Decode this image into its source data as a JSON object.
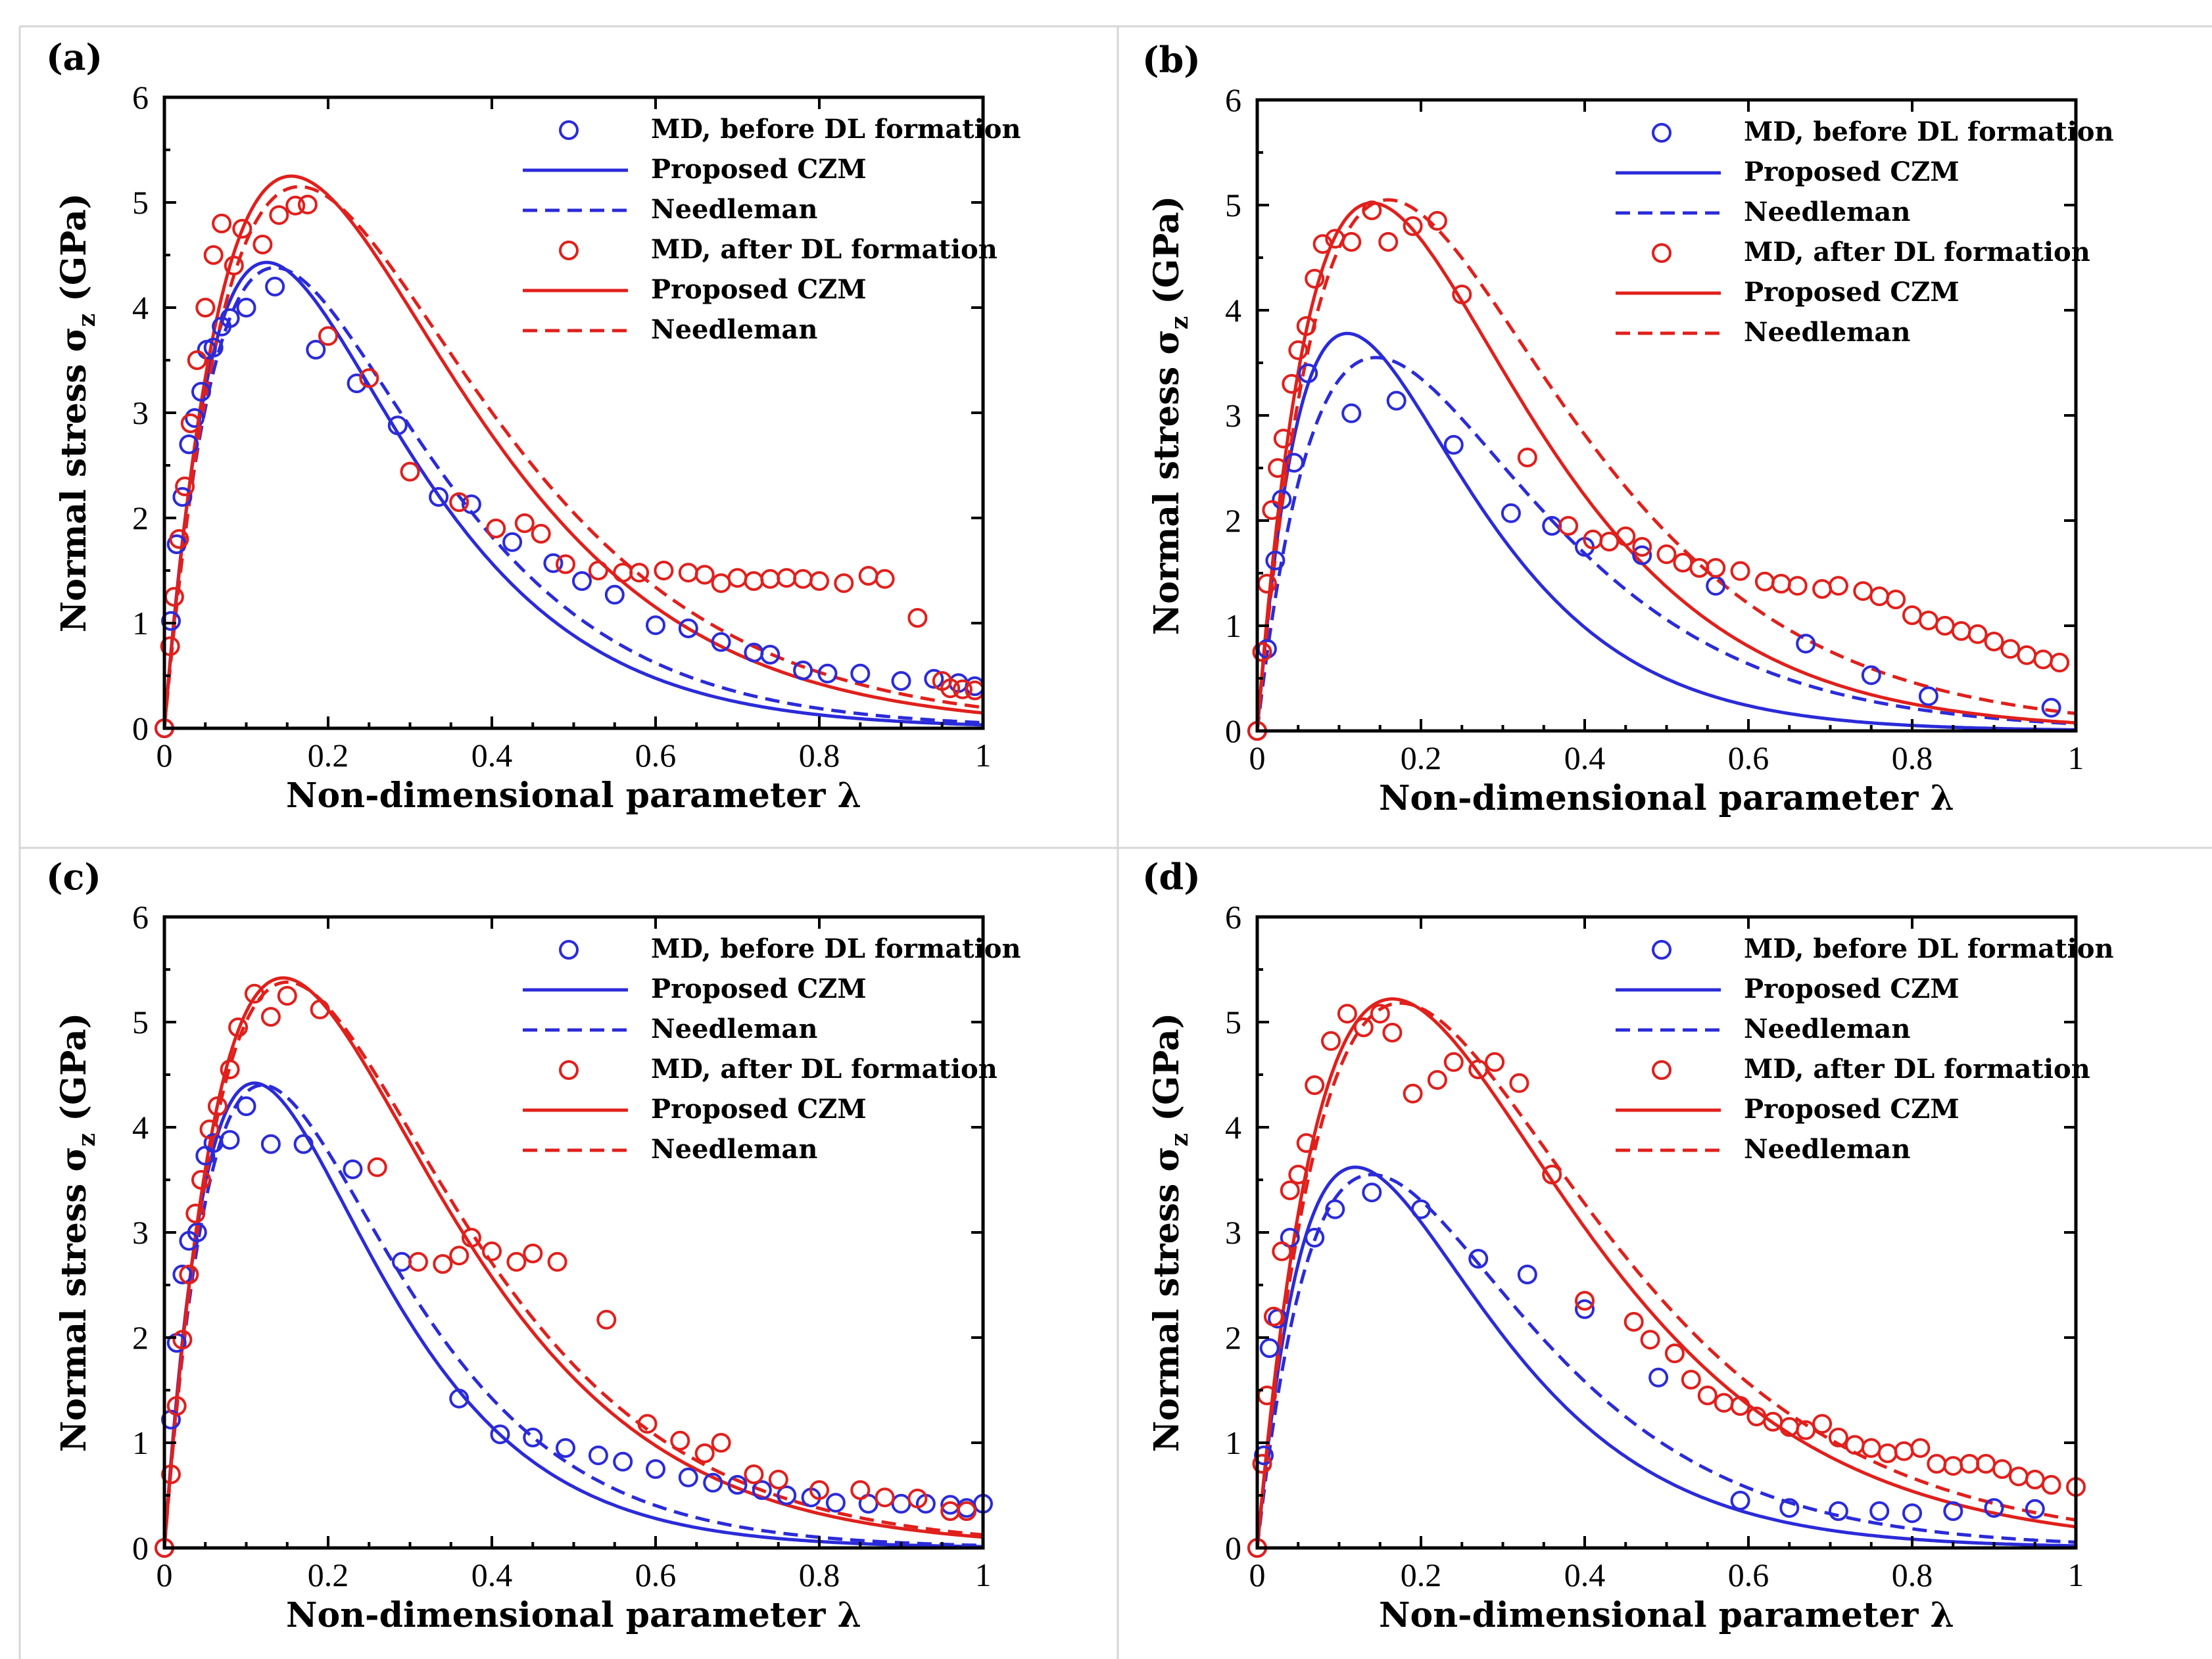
{
  "chart_data": [
    {
      "type": "scatter",
      "panel_label": "(a)",
      "xlabel": "Non-dimensional parameter λ",
      "ylabel_main": "Normal stress σ",
      "ylabel_sub": "z",
      "ylabel_unit": " (GPa)",
      "xlim": [
        0,
        1
      ],
      "ylim": [
        0,
        6
      ],
      "xticks": [
        0,
        0.2,
        0.4,
        0.6,
        0.8,
        1
      ],
      "xtick_labels": [
        "0",
        "0.2",
        "0.4",
        "0.6",
        "0.8",
        "1"
      ],
      "yticks": [
        0,
        1,
        2,
        3,
        4,
        5,
        6
      ],
      "ytick_labels": [
        "0",
        "1",
        "2",
        "3",
        "4",
        "5",
        "6"
      ],
      "legend_position": "top-right",
      "params": {
        "blue_peak": 4.43,
        "blue_peak_x": 0.125,
        "blue_need_peak": 4.38,
        "blue_need_x": 0.135,
        "red_peak": 5.25,
        "red_peak_x": 0.155,
        "red_need_peak": 5.15,
        "red_need_x": 0.165
      },
      "series": [
        {
          "name": "MD, before DL formation",
          "kind": "markers",
          "color": "#2b2bd9",
          "x": [
            0.0,
            0.008,
            0.015,
            0.022,
            0.03,
            0.037,
            0.045,
            0.052,
            0.06,
            0.07,
            0.08,
            0.1,
            0.135,
            0.185,
            0.235,
            0.285,
            0.335,
            0.375,
            0.425,
            0.475,
            0.51,
            0.55,
            0.6,
            0.64,
            0.68,
            0.72,
            0.74,
            0.78,
            0.81,
            0.85,
            0.9,
            0.94,
            0.97,
            0.99
          ],
          "y": [
            0.0,
            1.02,
            1.75,
            2.2,
            2.7,
            2.95,
            3.2,
            3.6,
            3.62,
            3.82,
            3.9,
            4.0,
            4.2,
            3.6,
            3.28,
            2.88,
            2.2,
            2.13,
            1.77,
            1.57,
            1.4,
            1.27,
            0.98,
            0.95,
            0.82,
            0.72,
            0.7,
            0.55,
            0.52,
            0.52,
            0.45,
            0.47,
            0.43,
            0.4
          ]
        },
        {
          "name": "Proposed CZM",
          "kind": "solid",
          "color": "#2b2bd9",
          "curve": "blue_solid"
        },
        {
          "name": "Needleman",
          "kind": "dashed",
          "color": "#2b2bd9",
          "curve": "blue_dashed"
        },
        {
          "name": "MD, after DL formation",
          "kind": "markers",
          "color": "#e0201c",
          "x": [
            0.0,
            0.007,
            0.012,
            0.018,
            0.025,
            0.032,
            0.04,
            0.05,
            0.06,
            0.07,
            0.085,
            0.095,
            0.12,
            0.14,
            0.16,
            0.175,
            0.2,
            0.25,
            0.3,
            0.36,
            0.405,
            0.44,
            0.46,
            0.49,
            0.53,
            0.56,
            0.58,
            0.61,
            0.64,
            0.66,
            0.68,
            0.7,
            0.72,
            0.74,
            0.76,
            0.78,
            0.8,
            0.83,
            0.86,
            0.88,
            0.92,
            0.95,
            0.96,
            0.975,
            0.99
          ],
          "y": [
            0.0,
            0.78,
            1.25,
            1.8,
            2.3,
            2.9,
            3.5,
            4.0,
            4.5,
            4.8,
            4.4,
            4.75,
            4.6,
            4.88,
            4.97,
            4.98,
            3.73,
            3.33,
            2.44,
            2.15,
            1.9,
            1.95,
            1.85,
            1.56,
            1.5,
            1.48,
            1.48,
            1.5,
            1.48,
            1.46,
            1.38,
            1.43,
            1.4,
            1.42,
            1.43,
            1.42,
            1.4,
            1.38,
            1.45,
            1.42,
            1.05,
            0.45,
            0.38,
            0.37,
            0.36
          ]
        },
        {
          "name": "Proposed CZM",
          "kind": "solid",
          "color": "#e0201c",
          "curve": "red_solid"
        },
        {
          "name": "Needleman",
          "kind": "dashed",
          "color": "#e0201c",
          "curve": "red_dashed"
        }
      ]
    },
    {
      "type": "scatter",
      "panel_label": "(b)",
      "xlabel": "Non-dimensional parameter λ",
      "ylabel_main": "Normal stress σ",
      "ylabel_sub": "z",
      "ylabel_unit": " (GPa)",
      "xlim": [
        0,
        1
      ],
      "ylim": [
        0,
        6
      ],
      "xticks": [
        0,
        0.2,
        0.4,
        0.6,
        0.8,
        1
      ],
      "xtick_labels": [
        "0",
        "0.2",
        "0.4",
        "0.6",
        "0.8",
        "1"
      ],
      "yticks": [
        0,
        1,
        2,
        3,
        4,
        5,
        6
      ],
      "ytick_labels": [
        "0",
        "1",
        "2",
        "3",
        "4",
        "5",
        "6"
      ],
      "legend_position": "top-right",
      "params": {
        "blue_peak": 3.78,
        "blue_peak_x": 0.11,
        "blue_need_peak": 3.55,
        "blue_need_x": 0.145,
        "red_peak": 5.02,
        "red_peak_x": 0.14,
        "red_need_peak": 5.05,
        "red_need_x": 0.16
      },
      "series": [
        {
          "name": "MD, before DL formation",
          "kind": "markers",
          "color": "#2b2bd9",
          "x": [
            0.0,
            0.012,
            0.022,
            0.03,
            0.045,
            0.062,
            0.115,
            0.17,
            0.24,
            0.31,
            0.36,
            0.4,
            0.47,
            0.56,
            0.67,
            0.75,
            0.82,
            0.97
          ],
          "y": [
            0.0,
            0.78,
            1.62,
            2.2,
            2.55,
            3.4,
            3.02,
            3.14,
            2.72,
            2.07,
            1.95,
            1.75,
            1.67,
            1.38,
            0.83,
            0.53,
            0.33,
            0.22
          ]
        },
        {
          "name": "Proposed CZM",
          "kind": "solid",
          "color": "#2b2bd9",
          "curve": "blue_solid"
        },
        {
          "name": "Needleman",
          "kind": "dashed",
          "color": "#2b2bd9",
          "curve": "blue_dashed"
        },
        {
          "name": "MD, after DL formation",
          "kind": "markers",
          "color": "#e0201c",
          "x": [
            0.0,
            0.006,
            0.012,
            0.018,
            0.025,
            0.032,
            0.042,
            0.05,
            0.06,
            0.07,
            0.08,
            0.095,
            0.115,
            0.14,
            0.16,
            0.19,
            0.22,
            0.25,
            0.33,
            0.38,
            0.41,
            0.43,
            0.45,
            0.47,
            0.5,
            0.52,
            0.54,
            0.56,
            0.59,
            0.62,
            0.64,
            0.66,
            0.69,
            0.71,
            0.74,
            0.76,
            0.78,
            0.8,
            0.82,
            0.84,
            0.86,
            0.88,
            0.9,
            0.92,
            0.94,
            0.96,
            0.98
          ],
          "y": [
            0.0,
            0.75,
            1.4,
            2.1,
            2.5,
            2.78,
            3.3,
            3.62,
            3.85,
            4.3,
            4.63,
            4.68,
            4.65,
            4.95,
            4.65,
            4.8,
            4.85,
            4.15,
            2.6,
            1.95,
            1.82,
            1.8,
            1.85,
            1.75,
            1.68,
            1.6,
            1.55,
            1.55,
            1.52,
            1.42,
            1.4,
            1.38,
            1.35,
            1.38,
            1.33,
            1.28,
            1.25,
            1.1,
            1.05,
            1.0,
            0.95,
            0.92,
            0.85,
            0.78,
            0.72,
            0.68,
            0.65
          ]
        },
        {
          "name": "Proposed CZM",
          "kind": "solid",
          "color": "#e0201c",
          "curve": "red_solid"
        },
        {
          "name": "Needleman",
          "kind": "dashed",
          "color": "#e0201c",
          "curve": "red_dashed"
        }
      ]
    },
    {
      "type": "scatter",
      "panel_label": "(c)",
      "xlabel": "Non-dimensional parameter λ",
      "ylabel_main": "Normal stress σ",
      "ylabel_sub": "z",
      "ylabel_unit": " (GPa)",
      "xlim": [
        0,
        1
      ],
      "ylim": [
        0,
        6
      ],
      "xticks": [
        0,
        0.2,
        0.4,
        0.6,
        0.8,
        1
      ],
      "xtick_labels": [
        "0",
        "0.2",
        "0.4",
        "0.6",
        "0.8",
        "1"
      ],
      "yticks": [
        0,
        1,
        2,
        3,
        4,
        5,
        6
      ],
      "ytick_labels": [
        "0",
        "1",
        "2",
        "3",
        "4",
        "5",
        "6"
      ],
      "legend_position": "top-right",
      "params": {
        "blue_peak": 4.42,
        "blue_peak_x": 0.11,
        "blue_need_peak": 4.4,
        "blue_need_x": 0.12,
        "red_peak": 5.42,
        "red_peak_x": 0.145,
        "red_need_peak": 5.38,
        "red_need_x": 0.15
      },
      "series": [
        {
          "name": "MD, before DL formation",
          "kind": "markers",
          "color": "#2b2bd9",
          "x": [
            0.0,
            0.008,
            0.015,
            0.022,
            0.03,
            0.04,
            0.05,
            0.06,
            0.08,
            0.1,
            0.13,
            0.17,
            0.23,
            0.29,
            0.36,
            0.41,
            0.45,
            0.49,
            0.53,
            0.56,
            0.6,
            0.64,
            0.67,
            0.7,
            0.73,
            0.76,
            0.79,
            0.82,
            0.86,
            0.9,
            0.93,
            0.96,
            0.98,
            1.0
          ],
          "y": [
            0.0,
            1.22,
            1.95,
            2.6,
            2.92,
            3.0,
            3.73,
            3.85,
            3.88,
            4.2,
            3.84,
            3.84,
            3.6,
            2.72,
            1.42,
            1.08,
            1.05,
            0.95,
            0.88,
            0.82,
            0.75,
            0.67,
            0.62,
            0.6,
            0.55,
            0.5,
            0.48,
            0.43,
            0.42,
            0.42,
            0.42,
            0.41,
            0.38,
            0.42
          ]
        },
        {
          "name": "Proposed CZM",
          "kind": "solid",
          "color": "#2b2bd9",
          "curve": "blue_solid"
        },
        {
          "name": "Needleman",
          "kind": "dashed",
          "color": "#2b2bd9",
          "curve": "blue_dashed"
        },
        {
          "name": "MD, after DL formation",
          "kind": "markers",
          "color": "#e0201c",
          "x": [
            0.0,
            0.008,
            0.015,
            0.022,
            0.03,
            0.038,
            0.045,
            0.055,
            0.065,
            0.08,
            0.09,
            0.11,
            0.13,
            0.15,
            0.19,
            0.26,
            0.31,
            0.34,
            0.36,
            0.375,
            0.4,
            0.43,
            0.45,
            0.48,
            0.54,
            0.59,
            0.63,
            0.66,
            0.68,
            0.72,
            0.75,
            0.8,
            0.85,
            0.88,
            0.92,
            0.96,
            0.98
          ],
          "y": [
            0.0,
            0.7,
            1.35,
            1.98,
            2.6,
            3.18,
            3.5,
            3.98,
            4.2,
            4.55,
            4.95,
            5.27,
            5.05,
            5.25,
            5.12,
            3.62,
            2.72,
            2.7,
            2.78,
            2.95,
            2.82,
            2.72,
            2.8,
            2.72,
            2.17,
            1.18,
            1.02,
            0.9,
            1.0,
            0.7,
            0.65,
            0.55,
            0.55,
            0.48,
            0.47,
            0.35,
            0.35
          ]
        },
        {
          "name": "Proposed CZM",
          "kind": "solid",
          "color": "#e0201c",
          "curve": "red_solid"
        },
        {
          "name": "Needleman",
          "kind": "dashed",
          "color": "#e0201c",
          "curve": "red_dashed"
        }
      ]
    },
    {
      "type": "scatter",
      "panel_label": "(d)",
      "xlabel": "Non-dimensional parameter λ",
      "ylabel_main": "Normal stress σ",
      "ylabel_sub": "z",
      "ylabel_unit": " (GPa)",
      "xlim": [
        0,
        1
      ],
      "ylim": [
        0,
        6
      ],
      "xticks": [
        0,
        0.2,
        0.4,
        0.6,
        0.8,
        1
      ],
      "xtick_labels": [
        "0",
        "0.2",
        "0.4",
        "0.6",
        "0.8",
        "1"
      ],
      "yticks": [
        0,
        1,
        2,
        3,
        4,
        5,
        6
      ],
      "ytick_labels": [
        "0",
        "1",
        "2",
        "3",
        "4",
        "5",
        "6"
      ],
      "legend_position": "top-right",
      "params": {
        "blue_peak": 3.62,
        "blue_peak_x": 0.12,
        "blue_need_peak": 3.55,
        "blue_need_x": 0.14,
        "red_peak": 5.22,
        "red_peak_x": 0.165,
        "red_need_peak": 5.18,
        "red_need_x": 0.175
      },
      "series": [
        {
          "name": "MD, before DL formation",
          "kind": "markers",
          "color": "#2b2bd9",
          "x": [
            0.0,
            0.008,
            0.015,
            0.025,
            0.04,
            0.07,
            0.095,
            0.14,
            0.2,
            0.27,
            0.33,
            0.4,
            0.49,
            0.59,
            0.65,
            0.71,
            0.76,
            0.8,
            0.85,
            0.9,
            0.95
          ],
          "y": [
            0.0,
            0.88,
            1.9,
            2.18,
            2.95,
            2.95,
            3.22,
            3.38,
            3.22,
            2.75,
            2.6,
            2.27,
            1.62,
            0.45,
            0.38,
            0.35,
            0.35,
            0.33,
            0.35,
            0.38,
            0.37
          ]
        },
        {
          "name": "Proposed CZM",
          "kind": "solid",
          "color": "#2b2bd9",
          "curve": "blue_solid"
        },
        {
          "name": "Needleman",
          "kind": "dashed",
          "color": "#2b2bd9",
          "curve": "blue_dashed"
        },
        {
          "name": "MD, after DL formation",
          "kind": "markers",
          "color": "#e0201c",
          "x": [
            0.0,
            0.006,
            0.012,
            0.02,
            0.03,
            0.04,
            0.05,
            0.06,
            0.07,
            0.09,
            0.11,
            0.13,
            0.15,
            0.165,
            0.19,
            0.22,
            0.24,
            0.27,
            0.29,
            0.32,
            0.36,
            0.4,
            0.46,
            0.48,
            0.51,
            0.53,
            0.55,
            0.57,
            0.59,
            0.61,
            0.63,
            0.65,
            0.67,
            0.69,
            0.71,
            0.73,
            0.75,
            0.77,
            0.79,
            0.81,
            0.83,
            0.85,
            0.87,
            0.89,
            0.91,
            0.93,
            0.95,
            0.97,
            1.0
          ],
          "y": [
            0.0,
            0.8,
            1.45,
            2.2,
            2.82,
            3.4,
            3.55,
            3.85,
            4.4,
            4.82,
            5.08,
            4.95,
            5.08,
            4.9,
            4.32,
            4.45,
            4.62,
            4.55,
            4.62,
            4.42,
            3.55,
            2.35,
            2.15,
            1.98,
            1.85,
            1.6,
            1.45,
            1.38,
            1.35,
            1.25,
            1.2,
            1.15,
            1.12,
            1.18,
            1.05,
            0.98,
            0.95,
            0.9,
            0.92,
            0.95,
            0.8,
            0.78,
            0.8,
            0.8,
            0.75,
            0.68,
            0.65,
            0.6,
            0.58
          ]
        },
        {
          "name": "Proposed CZM",
          "kind": "solid",
          "color": "#e0201c",
          "curve": "red_solid"
        },
        {
          "name": "Needleman",
          "kind": "dashed",
          "color": "#e0201c",
          "curve": "red_dashed"
        }
      ]
    }
  ]
}
